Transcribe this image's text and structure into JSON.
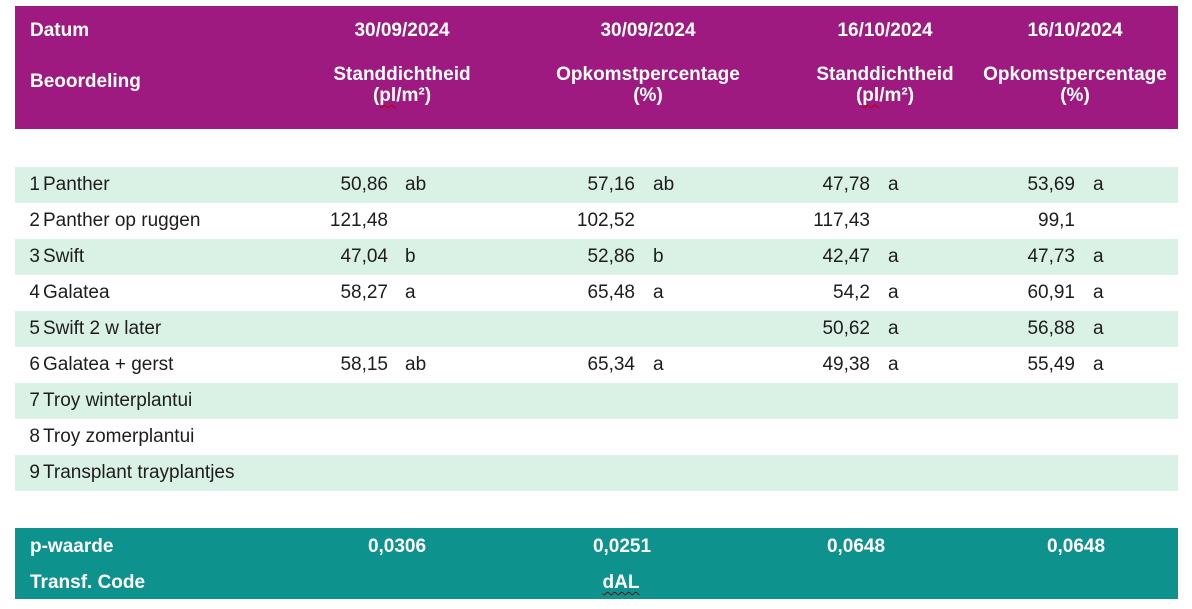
{
  "colors": {
    "header_band": "#9e1a80",
    "footer_band": "#0d928d",
    "row_stripe": "#d9f2e5",
    "band_text": "#ffffff",
    "body_text": "#1d1d1d",
    "squiggle": "#c00000"
  },
  "table": {
    "header": {
      "datum_label": "Datum",
      "beoordeling_label": "Beoordeling",
      "columns": [
        {
          "date": "30/09/2024",
          "measure": "Standdichtheid",
          "unit_pre": "(",
          "unit_sq": "pl",
          "unit_post": "/m²)"
        },
        {
          "date": "30/09/2024",
          "measure": "Opkomstpercentage",
          "unit_pre": "(%)",
          "unit_sq": "",
          "unit_post": ""
        },
        {
          "date": "16/10/2024",
          "measure": "Standdichtheid",
          "unit_pre": "(",
          "unit_sq": "pl",
          "unit_post": "/m²)"
        },
        {
          "date": "16/10/2024",
          "measure": "Opkomstpercentage",
          "unit_pre": "(%)",
          "unit_sq": "",
          "unit_post": ""
        }
      ]
    },
    "rows": [
      {
        "nr": "1",
        "name": "Panther",
        "values": [
          {
            "v": "50,86",
            "l": "ab"
          },
          {
            "v": "57,16",
            "l": "ab"
          },
          {
            "v": "47,78",
            "l": "a"
          },
          {
            "v": "53,69",
            "l": "a"
          }
        ]
      },
      {
        "nr": "2",
        "name": "Panther op ruggen",
        "values": [
          {
            "v": "121,48",
            "l": ""
          },
          {
            "v": "102,52",
            "l": ""
          },
          {
            "v": "117,43",
            "l": ""
          },
          {
            "v": "99,1",
            "l": ""
          }
        ]
      },
      {
        "nr": "3",
        "name": "Swift",
        "values": [
          {
            "v": "47,04",
            "l": "b"
          },
          {
            "v": "52,86",
            "l": "b"
          },
          {
            "v": "42,47",
            "l": "a"
          },
          {
            "v": "47,73",
            "l": "a"
          }
        ]
      },
      {
        "nr": "4",
        "name": "Galatea",
        "values": [
          {
            "v": "58,27",
            "l": "a"
          },
          {
            "v": "65,48",
            "l": "a"
          },
          {
            "v": "54,2",
            "l": "a"
          },
          {
            "v": "60,91",
            "l": "a"
          }
        ]
      },
      {
        "nr": "5",
        "name": "Swift 2 w later",
        "values": [
          {
            "v": "",
            "l": ""
          },
          {
            "v": "",
            "l": ""
          },
          {
            "v": "50,62",
            "l": "a"
          },
          {
            "v": "56,88",
            "l": "a"
          }
        ]
      },
      {
        "nr": "6",
        "name": "Galatea + gerst",
        "values": [
          {
            "v": "58,15",
            "l": "ab"
          },
          {
            "v": "65,34",
            "l": "a"
          },
          {
            "v": "49,38",
            "l": "a"
          },
          {
            "v": "55,49",
            "l": "a"
          }
        ]
      },
      {
        "nr": "7",
        "name": "Troy winterplantui",
        "values": [
          {
            "v": "",
            "l": ""
          },
          {
            "v": "",
            "l": ""
          },
          {
            "v": "",
            "l": ""
          },
          {
            "v": "",
            "l": ""
          }
        ]
      },
      {
        "nr": "8",
        "name": "Troy zomerplantui",
        "values": [
          {
            "v": "",
            "l": ""
          },
          {
            "v": "",
            "l": ""
          },
          {
            "v": "",
            "l": ""
          },
          {
            "v": "",
            "l": ""
          }
        ]
      },
      {
        "nr": "9",
        "name": "Transplant trayplantjes",
        "values": [
          {
            "v": "",
            "l": ""
          },
          {
            "v": "",
            "l": ""
          },
          {
            "v": "",
            "l": ""
          },
          {
            "v": "",
            "l": ""
          }
        ]
      }
    ],
    "footer": {
      "p_label": "p-waarde",
      "p_values": [
        "0,0306",
        "0,0251",
        "0,0648",
        "0,0648"
      ],
      "transf_label": "Transf. Code",
      "transf_code": "dAL"
    }
  }
}
